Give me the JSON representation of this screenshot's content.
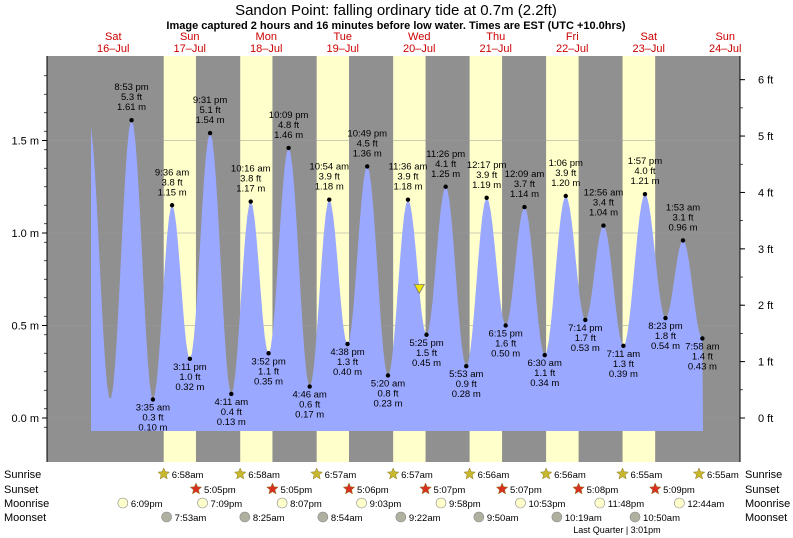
{
  "chart_data": {
    "type": "area",
    "title": "Sandon Point: falling  ordinary tide at 0.7m (2.2ft)",
    "subtitle": "Image captured 2 hours and 16 minutes before low water. Times are EST (UTC +10.0hrs)",
    "y_left_ticks": [
      {
        "label": "0.0 m",
        "value": 0.0
      },
      {
        "label": "0.5 m",
        "value": 0.5
      },
      {
        "label": "1.0 m",
        "value": 1.0
      },
      {
        "label": "1.5 m",
        "value": 1.5
      }
    ],
    "y_right_ticks": [
      {
        "label": "0 ft",
        "value": 0
      },
      {
        "label": "1 ft",
        "value": 1
      },
      {
        "label": "2 ft",
        "value": 2
      },
      {
        "label": "3 ft",
        "value": 3
      },
      {
        "label": "4 ft",
        "value": 4
      },
      {
        "label": "5 ft",
        "value": 5
      },
      {
        "label": "6 ft",
        "value": 6
      }
    ],
    "ylim_m": [
      -0.07,
      1.93
    ],
    "days": [
      {
        "dow": "Sat",
        "date": "16–Jul",
        "day_index": 0
      },
      {
        "dow": "Sun",
        "date": "17–Jul",
        "day_index": 1
      },
      {
        "dow": "Mon",
        "date": "18–Jul",
        "day_index": 2
      },
      {
        "dow": "Tue",
        "date": "19–Jul",
        "day_index": 3
      },
      {
        "dow": "Wed",
        "date": "20–Jul",
        "day_index": 4
      },
      {
        "dow": "Thu",
        "date": "21–Jul",
        "day_index": 5
      },
      {
        "dow": "Fri",
        "date": "22–Jul",
        "day_index": 6
      },
      {
        "dow": "Sat",
        "date": "23–Jul",
        "day_index": 7
      },
      {
        "dow": "Sun",
        "date": "24–Jul",
        "day_index": 8
      }
    ],
    "daylight": [
      {
        "rise": "6:58",
        "set": "17:05",
        "day_index": 1
      },
      {
        "rise": "6:58",
        "set": "17:05",
        "day_index": 2
      },
      {
        "rise": "6:57",
        "set": "17:06",
        "day_index": 3
      },
      {
        "rise": "6:57",
        "set": "17:07",
        "day_index": 4
      },
      {
        "rise": "6:56",
        "set": "17:07",
        "day_index": 5
      },
      {
        "rise": "6:56",
        "set": "17:08",
        "day_index": 6
      },
      {
        "rise": "6:55",
        "set": "17:09",
        "day_index": 7
      }
    ],
    "tides": [
      {
        "day_index": 0,
        "time24": "20:53",
        "time": "8:53 pm",
        "ft": "5.3 ft",
        "m": 1.61,
        "mlabel": "1.61 m",
        "type": "high"
      },
      {
        "day_index": 1,
        "time24": "03:35",
        "time": "3:35 am",
        "ft": "0.3 ft",
        "m": 0.1,
        "mlabel": "0.10 m",
        "type": "low"
      },
      {
        "day_index": 1,
        "time24": "09:36",
        "time": "9:36 am",
        "ft": "3.8 ft",
        "m": 1.15,
        "mlabel": "1.15 m",
        "type": "high"
      },
      {
        "day_index": 1,
        "time24": "15:11",
        "time": "3:11 pm",
        "ft": "1.0 ft",
        "m": 0.32,
        "mlabel": "0.32 m",
        "type": "low"
      },
      {
        "day_index": 1,
        "time24": "21:31",
        "time": "9:31 pm",
        "ft": "5.1 ft",
        "m": 1.54,
        "mlabel": "1.54 m",
        "type": "high"
      },
      {
        "day_index": 2,
        "time24": "04:11",
        "time": "4:11 am",
        "ft": "0.4 ft",
        "m": 0.13,
        "mlabel": "0.13 m",
        "type": "low"
      },
      {
        "day_index": 2,
        "time24": "10:16",
        "time": "10:16 am",
        "ft": "3.8 ft",
        "m": 1.17,
        "mlabel": "1.17 m",
        "type": "high"
      },
      {
        "day_index": 2,
        "time24": "15:52",
        "time": "3:52 pm",
        "ft": "1.1 ft",
        "m": 0.35,
        "mlabel": "0.35 m",
        "type": "low"
      },
      {
        "day_index": 2,
        "time24": "22:09",
        "time": "10:09 pm",
        "ft": "4.8 ft",
        "m": 1.46,
        "mlabel": "1.46 m",
        "type": "high"
      },
      {
        "day_index": 3,
        "time24": "04:46",
        "time": "4:46 am",
        "ft": "0.6 ft",
        "m": 0.17,
        "mlabel": "0.17 m",
        "type": "low"
      },
      {
        "day_index": 3,
        "time24": "10:54",
        "time": "10:54 am",
        "ft": "3.9 ft",
        "m": 1.18,
        "mlabel": "1.18 m",
        "type": "high"
      },
      {
        "day_index": 3,
        "time24": "16:38",
        "time": "4:38 pm",
        "ft": "1.3 ft",
        "m": 0.4,
        "mlabel": "0.40 m",
        "type": "low"
      },
      {
        "day_index": 3,
        "time24": "22:49",
        "time": "10:49 pm",
        "ft": "4.5 ft",
        "m": 1.36,
        "mlabel": "1.36 m",
        "type": "high"
      },
      {
        "day_index": 4,
        "time24": "05:20",
        "time": "5:20 am",
        "ft": "0.8 ft",
        "m": 0.23,
        "mlabel": "0.23 m",
        "type": "low"
      },
      {
        "day_index": 4,
        "time24": "11:36",
        "time": "11:36 am",
        "ft": "3.9 ft",
        "m": 1.18,
        "mlabel": "1.18 m",
        "type": "high"
      },
      {
        "day_index": 4,
        "time24": "17:25",
        "time": "5:25 pm",
        "ft": "1.5 ft",
        "m": 0.45,
        "mlabel": "0.45 m",
        "type": "low"
      },
      {
        "day_index": 4,
        "time24": "23:26",
        "time": "11:26 pm",
        "ft": "4.1 ft",
        "m": 1.25,
        "mlabel": "1.25 m",
        "type": "high"
      },
      {
        "day_index": 5,
        "time24": "05:53",
        "time": "5:53 am",
        "ft": "0.9 ft",
        "m": 0.28,
        "mlabel": "0.28 m",
        "type": "low"
      },
      {
        "day_index": 5,
        "time24": "12:17",
        "time": "12:17 pm",
        "ft": "3.9 ft",
        "m": 1.19,
        "mlabel": "1.19 m",
        "type": "high"
      },
      {
        "day_index": 5,
        "time24": "18:15",
        "time": "6:15 pm",
        "ft": "1.6 ft",
        "m": 0.5,
        "mlabel": "0.50 m",
        "type": "low"
      },
      {
        "day_index": 6,
        "time24": "00:09",
        "time": "12:09 am",
        "ft": "3.7 ft",
        "m": 1.14,
        "mlabel": "1.14 m",
        "type": "high"
      },
      {
        "day_index": 6,
        "time24": "06:30",
        "time": "6:30 am",
        "ft": "1.1 ft",
        "m": 0.34,
        "mlabel": "0.34 m",
        "type": "low"
      },
      {
        "day_index": 6,
        "time24": "13:06",
        "time": "1:06 pm",
        "ft": "3.9 ft",
        "m": 1.2,
        "mlabel": "1.20 m",
        "type": "high"
      },
      {
        "day_index": 6,
        "time24": "19:14",
        "time": "7:14 pm",
        "ft": "1.7 ft",
        "m": 0.53,
        "mlabel": "0.53 m",
        "type": "low"
      },
      {
        "day_index": 7,
        "time24": "00:56",
        "time": "12:56 am",
        "ft": "3.4 ft",
        "m": 1.04,
        "mlabel": "1.04 m",
        "type": "high"
      },
      {
        "day_index": 7,
        "time24": "07:11",
        "time": "7:11 am",
        "ft": "1.3 ft",
        "m": 0.39,
        "mlabel": "0.39 m",
        "type": "low"
      },
      {
        "day_index": 7,
        "time24": "13:57",
        "time": "1:57 pm",
        "ft": "4.0 ft",
        "m": 1.21,
        "mlabel": "1.21 m",
        "type": "high"
      },
      {
        "day_index": 7,
        "time24": "20:23",
        "time": "8:23 pm",
        "ft": "1.8 ft",
        "m": 0.54,
        "mlabel": "0.54 m",
        "type": "low"
      },
      {
        "day_index": 8,
        "time24": "01:53",
        "time": "1:53 am",
        "ft": "3.1 ft",
        "m": 0.96,
        "mlabel": "0.96 m",
        "type": "high"
      },
      {
        "day_index": 8,
        "time24": "07:58",
        "time": "7:58 am",
        "ft": "1.4 ft",
        "m": 0.43,
        "mlabel": "0.43 m",
        "type": "low"
      }
    ],
    "current_marker": {
      "day_index": 4,
      "time24": "15:09",
      "m": 0.7
    },
    "row_labels": {
      "sunrise": "Sunrise",
      "sunset": "Sunset",
      "moonrise": "Moonrise",
      "moonset": "Moonset"
    },
    "sunrise": [
      {
        "day_index": 1,
        "time24": "06:58",
        "label": "6:58am"
      },
      {
        "day_index": 2,
        "time24": "06:58",
        "label": "6:58am"
      },
      {
        "day_index": 3,
        "time24": "06:57",
        "label": "6:57am"
      },
      {
        "day_index": 4,
        "time24": "06:57",
        "label": "6:57am"
      },
      {
        "day_index": 5,
        "time24": "06:56",
        "label": "6:56am"
      },
      {
        "day_index": 6,
        "time24": "06:56",
        "label": "6:56am"
      },
      {
        "day_index": 7,
        "time24": "06:55",
        "label": "6:55am"
      },
      {
        "day_index": 8,
        "time24": "06:55",
        "label": "6:55am"
      }
    ],
    "sunset": [
      {
        "day_index": 1,
        "time24": "17:05",
        "label": "5:05pm"
      },
      {
        "day_index": 2,
        "time24": "17:05",
        "label": "5:05pm"
      },
      {
        "day_index": 3,
        "time24": "17:06",
        "label": "5:06pm"
      },
      {
        "day_index": 4,
        "time24": "17:07",
        "label": "5:07pm"
      },
      {
        "day_index": 5,
        "time24": "17:07",
        "label": "5:07pm"
      },
      {
        "day_index": 6,
        "time24": "17:08",
        "label": "5:08pm"
      },
      {
        "day_index": 7,
        "time24": "17:09",
        "label": "5:09pm"
      }
    ],
    "moonrise": [
      {
        "day_index": 0,
        "time24": "18:09",
        "label": "6:09pm"
      },
      {
        "day_index": 1,
        "time24": "19:09",
        "label": "7:09pm"
      },
      {
        "day_index": 2,
        "time24": "20:07",
        "label": "8:07pm"
      },
      {
        "day_index": 3,
        "time24": "21:03",
        "label": "9:03pm"
      },
      {
        "day_index": 4,
        "time24": "21:58",
        "label": "9:58pm"
      },
      {
        "day_index": 5,
        "time24": "22:53",
        "label": "10:53pm"
      },
      {
        "day_index": 6,
        "time24": "23:48",
        "label": "11:48pm"
      },
      {
        "day_index": 8,
        "time24": "00:44",
        "label": "12:44am"
      }
    ],
    "moonset": [
      {
        "day_index": 1,
        "time24": "07:53",
        "label": "7:53am"
      },
      {
        "day_index": 2,
        "time24": "08:25",
        "label": "8:25am"
      },
      {
        "day_index": 3,
        "time24": "08:54",
        "label": "8:54am"
      },
      {
        "day_index": 4,
        "time24": "09:22",
        "label": "9:22am"
      },
      {
        "day_index": 5,
        "time24": "09:50",
        "label": "9:50am"
      },
      {
        "day_index": 6,
        "time24": "10:19",
        "label": "10:19am"
      },
      {
        "day_index": 7,
        "time24": "10:50",
        "label": "10:50am"
      }
    ],
    "moon_phase_note": "Last Quarter | 3:01pm",
    "colors": {
      "night": "#909090",
      "day": "#ffffcc",
      "water": "#9aa8ff",
      "day_labels": "#cc0000",
      "sun_star": "#c8b830",
      "sunset_star": "#d83020",
      "moonrise_disc": "#ffffcc",
      "moonset_disc": "#b0b0a0",
      "marker": "#f2e600"
    }
  }
}
